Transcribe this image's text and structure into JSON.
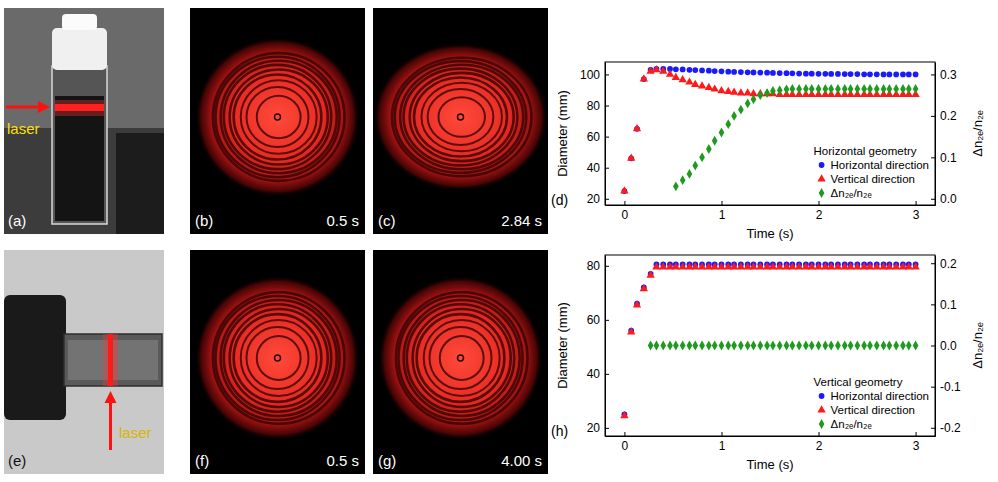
{
  "figure": {
    "panels": [
      {
        "label": "(a)",
        "caption": "laser"
      },
      {
        "label": "(b)",
        "time": "0.5 s"
      },
      {
        "label": "(c)",
        "time": "2.84 s"
      },
      {
        "label": "(e)",
        "caption": "laser"
      },
      {
        "label": "(f)",
        "time": "0.5 s"
      },
      {
        "label": "(g)",
        "time": "4.00 s"
      }
    ]
  },
  "chart_data": [
    {
      "type": "scatter",
      "annotations": [
        "(d)"
      ],
      "x_label": "Time (s)",
      "y_label": "Diameter (mm)",
      "y2_label": "Δn₂ₑ/n₂ₑ",
      "legend": "lower right",
      "legend_title": "Horizontal geometry",
      "grid": false,
      "xlim": [
        -0.2,
        3.2
      ],
      "xticks": [
        0,
        1,
        2,
        3
      ],
      "ylim": [
        16,
        108
      ],
      "yticks": [
        20,
        40,
        60,
        80,
        100
      ],
      "y2lim": [
        -0.015,
        0.33
      ],
      "y2ticks": [
        {
          "value": 0,
          "label": "0.0"
        },
        0.1,
        0.2,
        0.3
      ],
      "x": [
        0,
        0.07,
        0.13,
        0.2,
        0.27,
        0.33,
        0.4,
        0.47,
        0.53,
        0.6,
        0.67,
        0.73,
        0.8,
        0.87,
        0.93,
        1,
        1.07,
        1.13,
        1.2,
        1.27,
        1.33,
        1.4,
        1.47,
        1.53,
        1.6,
        1.67,
        1.73,
        1.8,
        1.87,
        1.93,
        2,
        2.07,
        2.13,
        2.2,
        2.27,
        2.33,
        2.4,
        2.47,
        2.53,
        2.6,
        2.67,
        2.73,
        2.8,
        2.87,
        2.93,
        3
      ],
      "series": [
        {
          "name": "Horizontal direction",
          "color": "#1a1aff",
          "marker": "circle",
          "values": [
            25,
            46,
            65,
            97,
            103,
            103.5,
            103.5,
            103.5,
            103.3,
            103.2,
            103,
            102.8,
            102.6,
            102.4,
            102.2,
            102,
            101.8,
            101.6,
            101.5,
            101.4,
            101.3,
            101.2,
            101.1,
            101,
            100.9,
            100.8,
            100.7,
            100.6,
            100.5,
            100.5,
            100.4,
            100.4,
            100.3,
            100.3,
            100.2,
            100.2,
            100.2,
            100.1,
            100.1,
            100.1,
            100,
            100,
            100,
            100,
            100,
            100
          ]
        },
        {
          "name": "Vertical direction",
          "color": "#ff1a1a",
          "marker": "triangle",
          "values": [
            25,
            46,
            65,
            97,
            102,
            103,
            102,
            100,
            98,
            96.5,
            95,
            93.5,
            92.5,
            91.5,
            90.5,
            89.5,
            89,
            88.5,
            88,
            88,
            87.5,
            87.5,
            87.5,
            87.5,
            87,
            87,
            87,
            87,
            87,
            87,
            87,
            87,
            87,
            87,
            87,
            87,
            87,
            87,
            87,
            87,
            87,
            87,
            87,
            87,
            87,
            87
          ]
        },
        {
          "name": "Δn₂ₑ/n₂ₑ",
          "color": "#1e9b1e",
          "marker": "diamond",
          "axis": "y2",
          "values": [
            null,
            null,
            null,
            null,
            null,
            null,
            null,
            null,
            0.03,
            0.045,
            0.06,
            0.08,
            0.1,
            0.12,
            0.14,
            0.16,
            0.18,
            0.2,
            0.215,
            0.23,
            0.24,
            0.25,
            0.255,
            0.26,
            0.262,
            0.264,
            0.265,
            0.265,
            0.265,
            0.265,
            0.265,
            0.265,
            0.265,
            0.265,
            0.265,
            0.265,
            0.265,
            0.265,
            0.265,
            0.265,
            0.265,
            0.265,
            0.265,
            0.265,
            0.265,
            0.265
          ]
        }
      ]
    },
    {
      "type": "scatter",
      "annotations": [
        "(h)"
      ],
      "x_label": "Time (s)",
      "y_label": "Diameter (mm)",
      "y2_label": "Δn₂ₑ/n₂ₑ",
      "legend": "lower right",
      "legend_title": "Vertical geometry",
      "grid": false,
      "xlim": [
        -0.2,
        3.2
      ],
      "xticks": [
        0,
        1,
        2,
        3
      ],
      "ylim": [
        17,
        84
      ],
      "yticks": [
        20,
        40,
        60,
        80
      ],
      "y2lim": [
        -0.22,
        0.22
      ],
      "y2ticks": [
        -0.2,
        -0.1,
        {
          "value": 0,
          "label": "0.0"
        },
        0.1,
        0.2
      ],
      "x": [
        0,
        0.07,
        0.13,
        0.2,
        0.27,
        0.33,
        0.4,
        0.47,
        0.53,
        0.6,
        0.67,
        0.73,
        0.8,
        0.87,
        0.93,
        1,
        1.07,
        1.13,
        1.2,
        1.27,
        1.33,
        1.4,
        1.47,
        1.53,
        1.6,
        1.67,
        1.73,
        1.8,
        1.87,
        1.93,
        2,
        2.07,
        2.13,
        2.2,
        2.27,
        2.33,
        2.4,
        2.47,
        2.53,
        2.6,
        2.67,
        2.73,
        2.8,
        2.87,
        2.93,
        3
      ],
      "series": [
        {
          "name": "Horizontal direction",
          "color": "#1a1aff",
          "marker": "circle",
          "values": [
            25,
            56,
            66,
            72,
            77,
            80.5,
            80.5,
            80.5,
            80.5,
            80.5,
            80.5,
            80.5,
            80.5,
            80.5,
            80.5,
            80.5,
            80.5,
            80.5,
            80.5,
            80.5,
            80.5,
            80.5,
            80.5,
            80.5,
            80.5,
            80.5,
            80.5,
            80.5,
            80.5,
            80.5,
            80.5,
            80.5,
            80.5,
            80.5,
            80.5,
            80.5,
            80.5,
            80.5,
            80.5,
            80.5,
            80.5,
            80.5,
            80.5,
            80.5,
            80.5,
            80.5
          ]
        },
        {
          "name": "Vertical direction",
          "color": "#ff1a1a",
          "marker": "triangle",
          "values": [
            24.5,
            55.5,
            65.5,
            71.5,
            76.5,
            79.5,
            79.5,
            79.5,
            79.5,
            79.5,
            79.5,
            79.5,
            79.5,
            79.5,
            79.5,
            79.5,
            79.5,
            79.5,
            79.5,
            79.5,
            79.5,
            79.5,
            79.5,
            79.5,
            79.5,
            79.5,
            79.5,
            79.5,
            79.5,
            79.5,
            79.5,
            79.5,
            79.5,
            79.5,
            79.5,
            79.5,
            79.5,
            79.5,
            79.5,
            79.5,
            79.5,
            79.5,
            79.5,
            79.5,
            79.5,
            79.5
          ]
        },
        {
          "name": "Δn₂ₑ/n₂ₑ",
          "color": "#1e9b1e",
          "marker": "diamond",
          "axis": "y2",
          "values": [
            null,
            null,
            null,
            null,
            0,
            0,
            0,
            0,
            0,
            0,
            0,
            0,
            0,
            0,
            0,
            0,
            0,
            0,
            0,
            0,
            0,
            0,
            0,
            0,
            0,
            0,
            0,
            0,
            0,
            0,
            0,
            0,
            0,
            0,
            0,
            0,
            0,
            0,
            0,
            0,
            0,
            0,
            0,
            0,
            0,
            0
          ]
        }
      ]
    }
  ]
}
